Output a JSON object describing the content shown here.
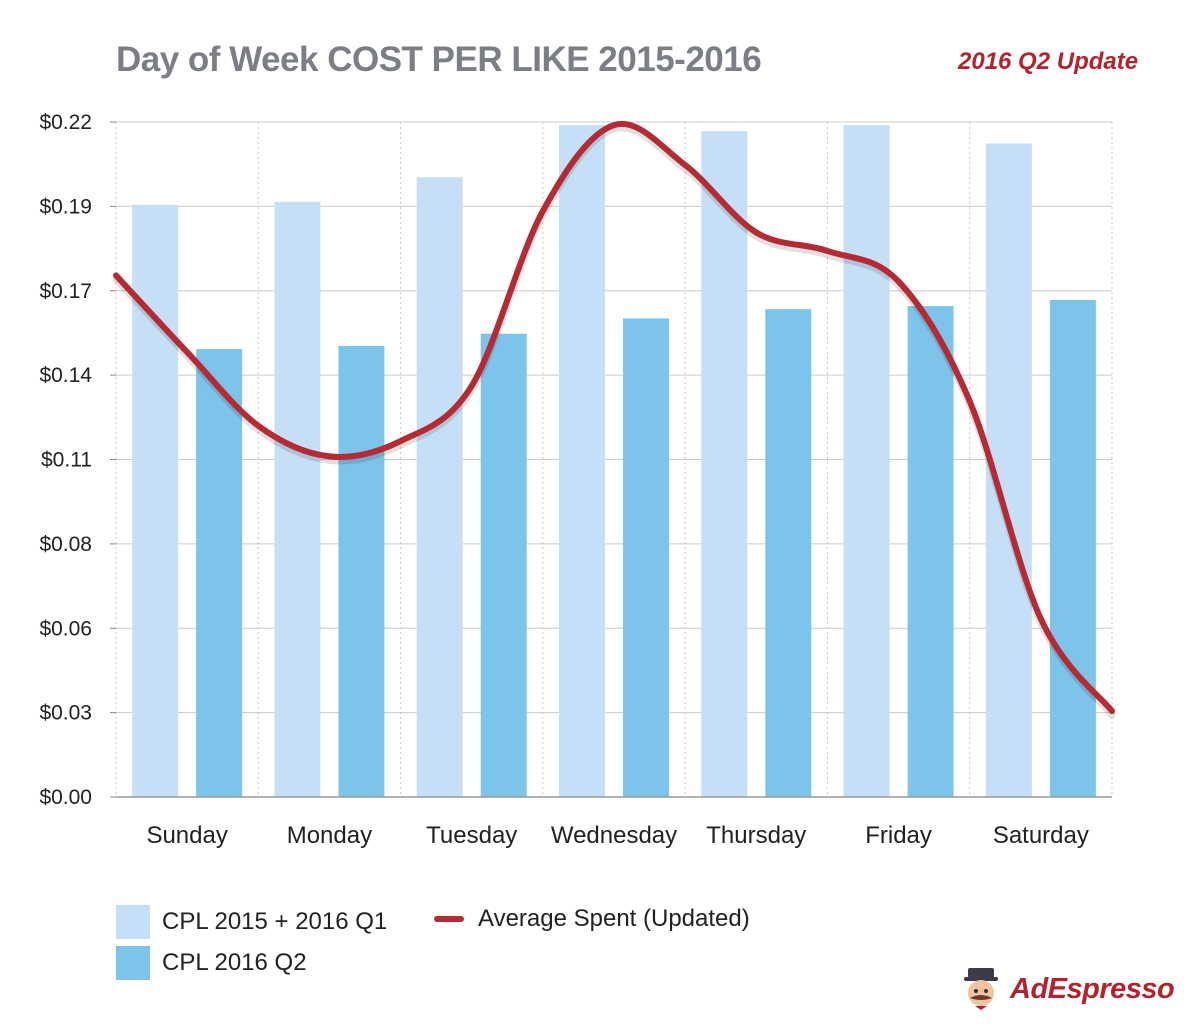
{
  "title": "Day of Week COST PER LIKE 2015-2016",
  "badge": "2016 Q2 Update",
  "brand": "AdEspresso",
  "colors": {
    "series1": "#c5dff6",
    "series2": "#7dc4ea",
    "line": "#b52a33",
    "grid": "#cccccc",
    "title": "#7b7e84"
  },
  "legend": {
    "s1": "CPL 2015 + 2016 Q1",
    "s2": "CPL 2016 Q2",
    "line": "Average Spent (Updated)"
  },
  "chart_data": {
    "type": "bar",
    "title": "Day of Week COST PER LIKE 2015-2016",
    "categories": [
      "Sunday",
      "Monday",
      "Tuesday",
      "Wednesday",
      "Thursday",
      "Friday",
      "Saturday"
    ],
    "yticks": [
      "$0.00",
      "$0.03",
      "$0.06",
      "$0.08",
      "$0.11",
      "$0.14",
      "$0.17",
      "$0.19",
      "$0.22"
    ],
    "ylim": [
      0,
      0.22
    ],
    "series": [
      {
        "name": "CPL 2015 + 2016 Q1",
        "type": "bar",
        "values": [
          0.193,
          0.194,
          0.202,
          0.219,
          0.217,
          0.219,
          0.213
        ]
      },
      {
        "name": "CPL 2016 Q2",
        "type": "bar",
        "values": [
          0.146,
          0.147,
          0.151,
          0.156,
          0.159,
          0.16,
          0.162
        ]
      },
      {
        "name": "Average Spent (Updated)",
        "type": "line",
        "smooth": true,
        "x": [
          -0.5,
          0.0,
          0.5,
          1.0,
          1.5,
          2.0,
          2.5,
          3.0,
          3.5,
          4.0,
          4.5,
          5.0,
          5.5,
          6.0,
          6.5
        ],
        "values": [
          0.17,
          0.145,
          0.121,
          0.111,
          0.116,
          0.134,
          0.191,
          0.219,
          0.206,
          0.184,
          0.178,
          0.168,
          0.129,
          0.058,
          0.028
        ]
      }
    ]
  }
}
